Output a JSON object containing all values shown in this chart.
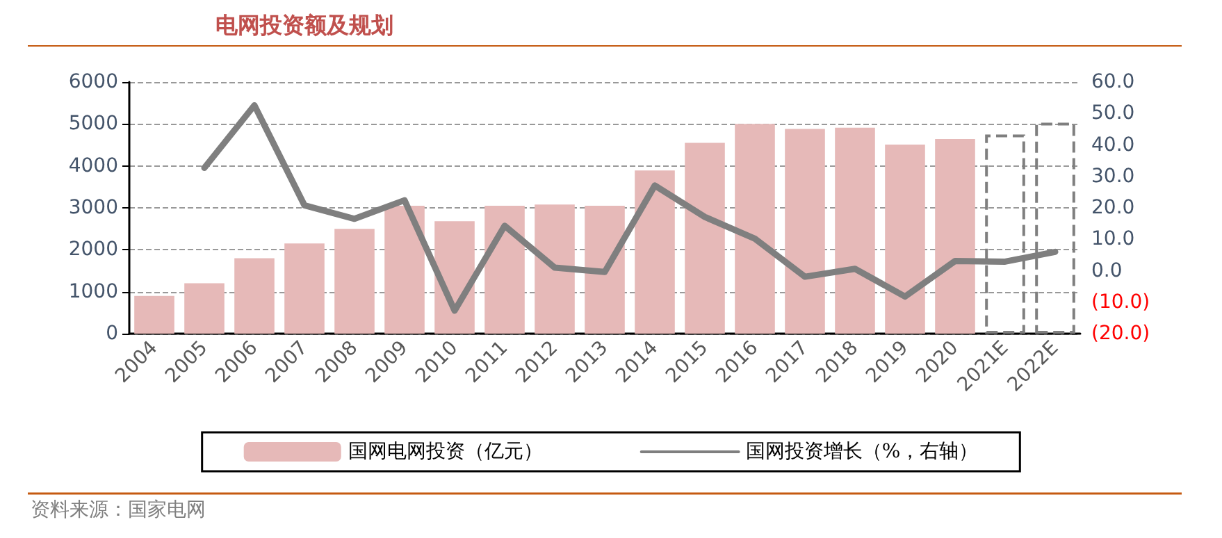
{
  "chart_data": {
    "type": "bar",
    "title": "电网投资额及规划",
    "categories": [
      "2004",
      "2005",
      "2006",
      "2007",
      "2008",
      "2009",
      "2010",
      "2011",
      "2012",
      "2013",
      "2014",
      "2015",
      "2016",
      "2017",
      "2018",
      "2019",
      "2020",
      "2021E",
      "2022E"
    ],
    "series": [
      {
        "name": "国网电网投资（亿元）",
        "color": "#e6b9b8",
        "values": [
          900,
          1200,
          1800,
          2150,
          2500,
          3050,
          2680,
          3050,
          3080,
          3050,
          3890,
          4550,
          5000,
          4880,
          4910,
          4510,
          4640,
          null,
          null
        ]
      },
      {
        "type": "bar",
        "color": "#7f7f7f",
        "line_style": "dashed",
        "values": [
          null,
          null,
          null,
          null,
          null,
          null,
          null,
          null,
          null,
          null,
          null,
          null,
          null,
          null,
          null,
          null,
          null,
          4750,
          5030
        ]
      },
      {
        "name": "国网投资增长（%，右轴）",
        "type": "line",
        "axis": "y2",
        "color": "#7f7f7f",
        "values": [
          null,
          32.7,
          52.6,
          20.8,
          16.5,
          22.4,
          -12.7,
          14.3,
          1.0,
          -0.4,
          27.1,
          17.1,
          10.2,
          -1.9,
          0.6,
          -8.2,
          3.1,
          2.9,
          6.0
        ]
      }
    ],
    "ylim": [
      0,
      6000
    ],
    "yticks": [
      0,
      1000,
      2000,
      3000,
      4000,
      5000,
      6000
    ],
    "y2lim": [
      -20,
      60
    ],
    "y2ticks": [
      {
        "value": -20,
        "label": "(20.0)"
      },
      {
        "value": -10,
        "label": "(10.0)"
      },
      {
        "value": 0,
        "label": "0.0"
      },
      {
        "value": 10,
        "label": "10.0"
      },
      {
        "value": 20,
        "label": "20.0"
      },
      {
        "value": 30,
        "label": "30.0"
      },
      {
        "value": 40,
        "label": "40.0"
      },
      {
        "value": 50,
        "label": "50.0"
      },
      {
        "value": 60,
        "label": "60.0"
      }
    ],
    "grid": "y",
    "legend": "bottom",
    "marker": "none",
    "annotations": [
      "资料来源：国家电网"
    ]
  }
}
